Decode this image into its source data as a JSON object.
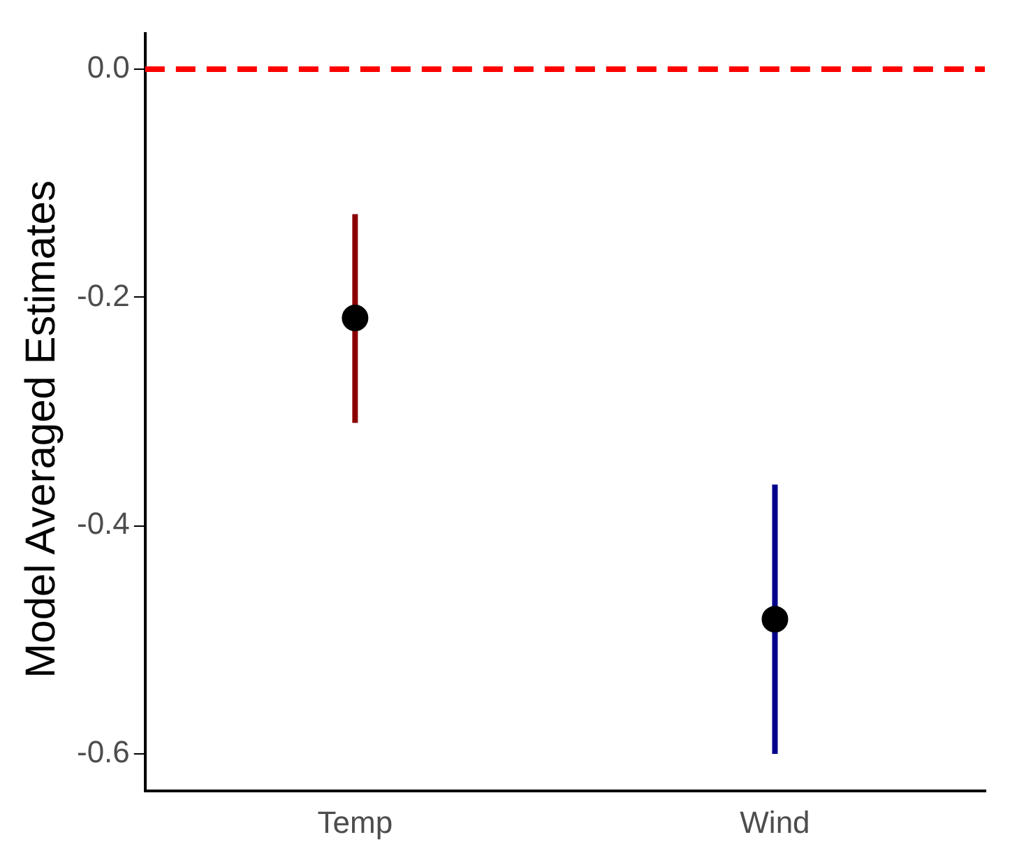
{
  "chart_data": {
    "type": "scatter",
    "ylabel": "Model Averaged Estimates",
    "categories": [
      "Temp",
      "Wind"
    ],
    "series": [
      {
        "color": "#000000",
        "values": [
          -0.218,
          -0.482
        ],
        "errors": [
          [
            -0.31,
            -0.127
          ],
          [
            -0.6,
            -0.364
          ]
        ]
      }
    ],
    "ylim": [
      -0.632,
      0.031
    ],
    "yticks": [
      {
        "value": 0,
        "label": "0.0"
      },
      -0.2,
      -0.4,
      -0.6
    ],
    "ref_lines": [
      {
        "axis": "y",
        "value": 0,
        "color": "#ff0000",
        "line_style": "dashed"
      }
    ],
    "marker": "circle",
    "grid": false,
    "legend": false
  }
}
